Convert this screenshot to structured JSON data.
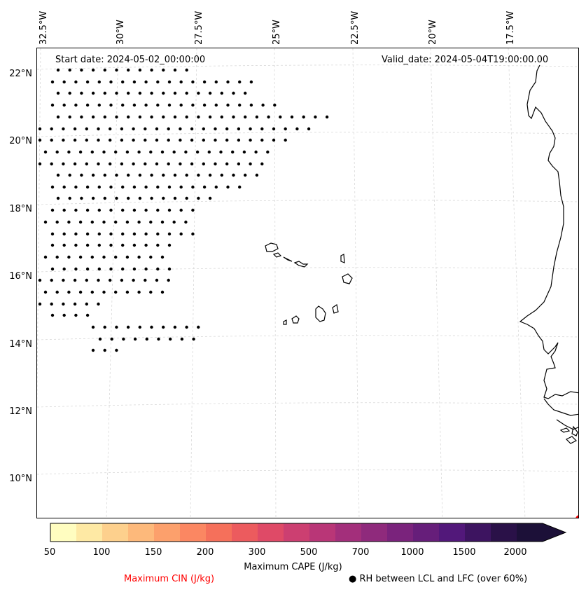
{
  "map": {
    "start_date": "Start date: 2024-05-02_00:00:00",
    "valid_date": "Valid_date: 2024-05-04T19:00:00.00",
    "lon_labels": [
      "32.5°W",
      "30°W",
      "27.5°W",
      "25°W",
      "22.5°W",
      "20°W",
      "17.5°W"
    ],
    "lat_labels": [
      "22°N",
      "20°N",
      "18°N",
      "16°N",
      "14°N",
      "12°N",
      "10°N"
    ],
    "gridline_color": "#d9d9d9",
    "coastline_color": "#000000",
    "stipple_marker": "filled-circle"
  },
  "colorbar": {
    "title": "Maximum CAPE (J/kg)",
    "tick_labels": [
      "50",
      "100",
      "150",
      "200",
      "300",
      "500",
      "700",
      "1000",
      "1500",
      "2000"
    ],
    "levels": [
      50,
      75,
      100,
      125,
      150,
      175,
      200,
      250,
      300,
      400,
      500,
      600,
      700,
      850,
      1000,
      1250,
      1500,
      1750,
      2000
    ],
    "colors": [
      "#fffdc0",
      "#fee9a4",
      "#fdd08d",
      "#fdb97b",
      "#fca06c",
      "#fb8762",
      "#f5705b",
      "#ec5b5e",
      "#df4a67",
      "#cc3f71",
      "#b93677",
      "#a32f7b",
      "#8f2a7c",
      "#7a237c",
      "#661e7a",
      "#52187a",
      "#3d1460",
      "#2a1148",
      "#1c1038"
    ],
    "extend": "max"
  },
  "legend": {
    "cin_label": "Maximum CIN (J/kg)",
    "cin_color": "#ff0000",
    "rh_label": "● RH between LCL and LFC (over 60%)"
  }
}
